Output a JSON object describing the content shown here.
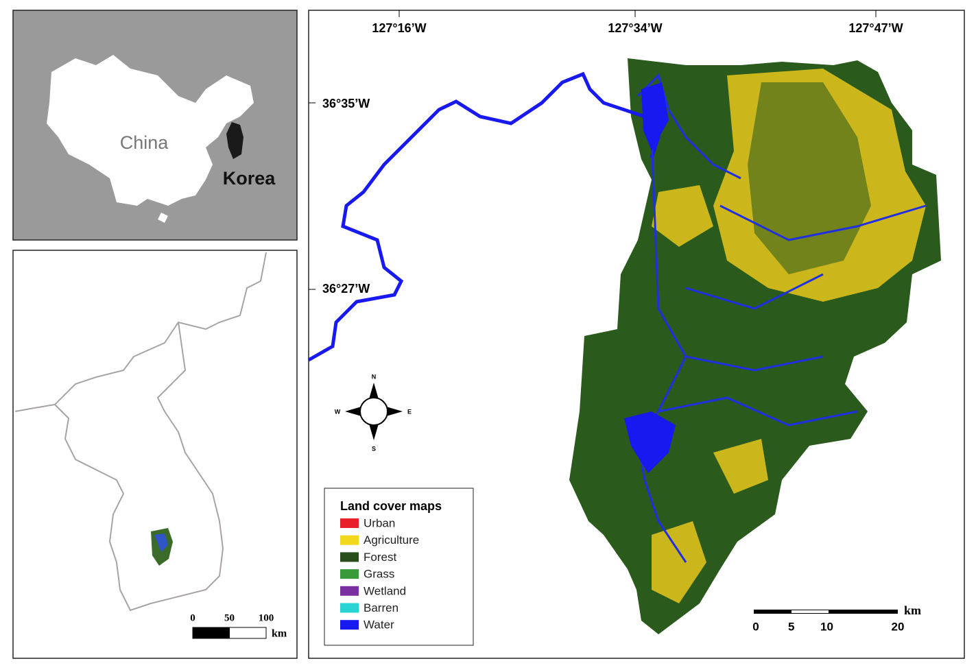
{
  "inset_map": {
    "labels": {
      "china": "China",
      "korea": "Korea"
    }
  },
  "korea_map": {
    "scale": {
      "ticks": [
        0,
        50,
        100
      ],
      "unit": "km"
    }
  },
  "main_map": {
    "longitude_labels": [
      "127°16’W",
      "127°34’W",
      "127°47’W"
    ],
    "latitude_labels": [
      "36°35’W",
      "36°27’W"
    ],
    "compass": {
      "n": "N",
      "e": "E",
      "s": "S",
      "w": "W"
    },
    "legend": {
      "title": "Land cover maps",
      "items": [
        {
          "label": "Urban",
          "color": "#e8202a"
        },
        {
          "label": "Agriculture",
          "color": "#f2d81c"
        },
        {
          "label": "Forest",
          "color": "#2a4d1c"
        },
        {
          "label": "Grass",
          "color": "#3a9a3a"
        },
        {
          "label": "Wetland",
          "color": "#7a2fa0"
        },
        {
          "label": "Barren",
          "color": "#29d3d3"
        },
        {
          "label": "Water",
          "color": "#1818f0"
        }
      ]
    },
    "scale": {
      "ticks": [
        0,
        5,
        10,
        20
      ],
      "unit": "km"
    }
  }
}
